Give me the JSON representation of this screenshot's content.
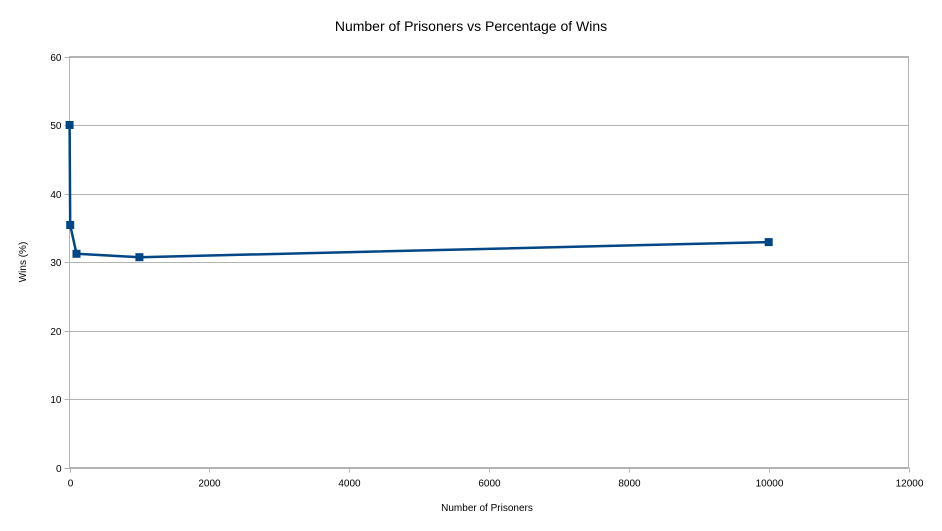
{
  "chart_data": {
    "type": "scatter",
    "title": "Number of Prisoners vs Percentage of Wins",
    "xlabel": "Number of Prisoners",
    "ylabel": "Wins (%)",
    "xlim": [
      0,
      12000
    ],
    "ylim": [
      0,
      60
    ],
    "xticks": [
      0,
      2000,
      4000,
      6000,
      8000,
      10000,
      12000
    ],
    "yticks": [
      0,
      10,
      20,
      30,
      40,
      50,
      60
    ],
    "grid": "horizontal",
    "legend": "none",
    "series": [
      {
        "color": "#004586",
        "marker": "square",
        "connected": true,
        "points": [
          {
            "x": 2,
            "y": 50
          },
          {
            "x": 10,
            "y": 35.4
          },
          {
            "x": 100,
            "y": 31.2
          },
          {
            "x": 1000,
            "y": 30.7
          },
          {
            "x": 10000,
            "y": 32.9
          }
        ]
      }
    ]
  }
}
